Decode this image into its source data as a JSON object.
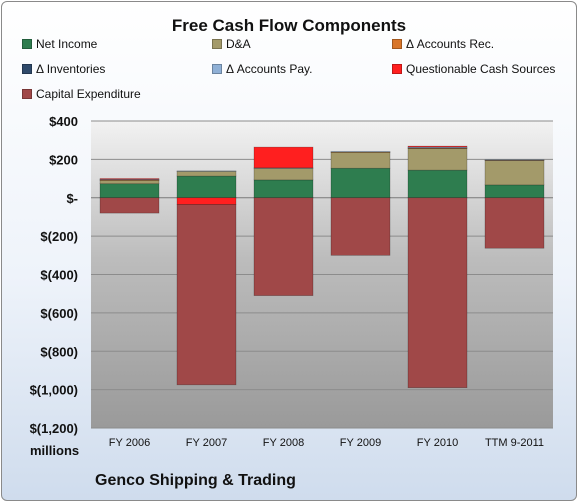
{
  "chart_data": {
    "type": "bar",
    "stacked": true,
    "title": "Free Cash Flow Components",
    "ylabel": "",
    "xlabel": "",
    "y_units_label": "millions",
    "ylim": [
      -1200,
      400
    ],
    "yticks": [
      400,
      200,
      0,
      -200,
      -400,
      -600,
      -800,
      -1000,
      -1200
    ],
    "ytick_labels": [
      "$400",
      "$200",
      "$-",
      "$(200)",
      "$(400)",
      "$(600)",
      "$(800)",
      "$(1,000)",
      "$(1,200)"
    ],
    "categories": [
      "FY 2006",
      "FY 2007",
      "FY 2008",
      "FY 2009",
      "FY 2010",
      "TTM 9-2011"
    ],
    "legend_position": "top",
    "grid": true,
    "series": [
      {
        "name": "Net Income",
        "color": "#2e7d4f",
        "values": [
          73,
          113,
          93,
          154,
          144,
          67
        ]
      },
      {
        "name": "D&A",
        "color": "#a39a6a",
        "values": [
          18,
          25,
          60,
          83,
          112,
          127
        ]
      },
      {
        "name": "Δ Accounts Rec.",
        "color": "#d9762a",
        "values": [
          2,
          0,
          0,
          2,
          3,
          2
        ]
      },
      {
        "name": "Δ Inventories",
        "color": "#2f4a6b",
        "values": [
          0,
          0,
          0,
          0,
          0,
          0
        ]
      },
      {
        "name": "Δ Accounts Pay.",
        "color": "#8fb0d6",
        "values": [
          3,
          2,
          3,
          2,
          5,
          2
        ]
      },
      {
        "name": "Questionable Cash Sources",
        "color": "#ff1f1f",
        "values": [
          4,
          -35,
          108,
          0,
          5,
          0
        ]
      },
      {
        "name": "Capital Expenditure",
        "color": "#a04848",
        "values": [
          -80,
          -940,
          -510,
          -300,
          -990,
          -263
        ]
      }
    ]
  },
  "footer": {
    "company": "Genco Shipping & Trading"
  }
}
